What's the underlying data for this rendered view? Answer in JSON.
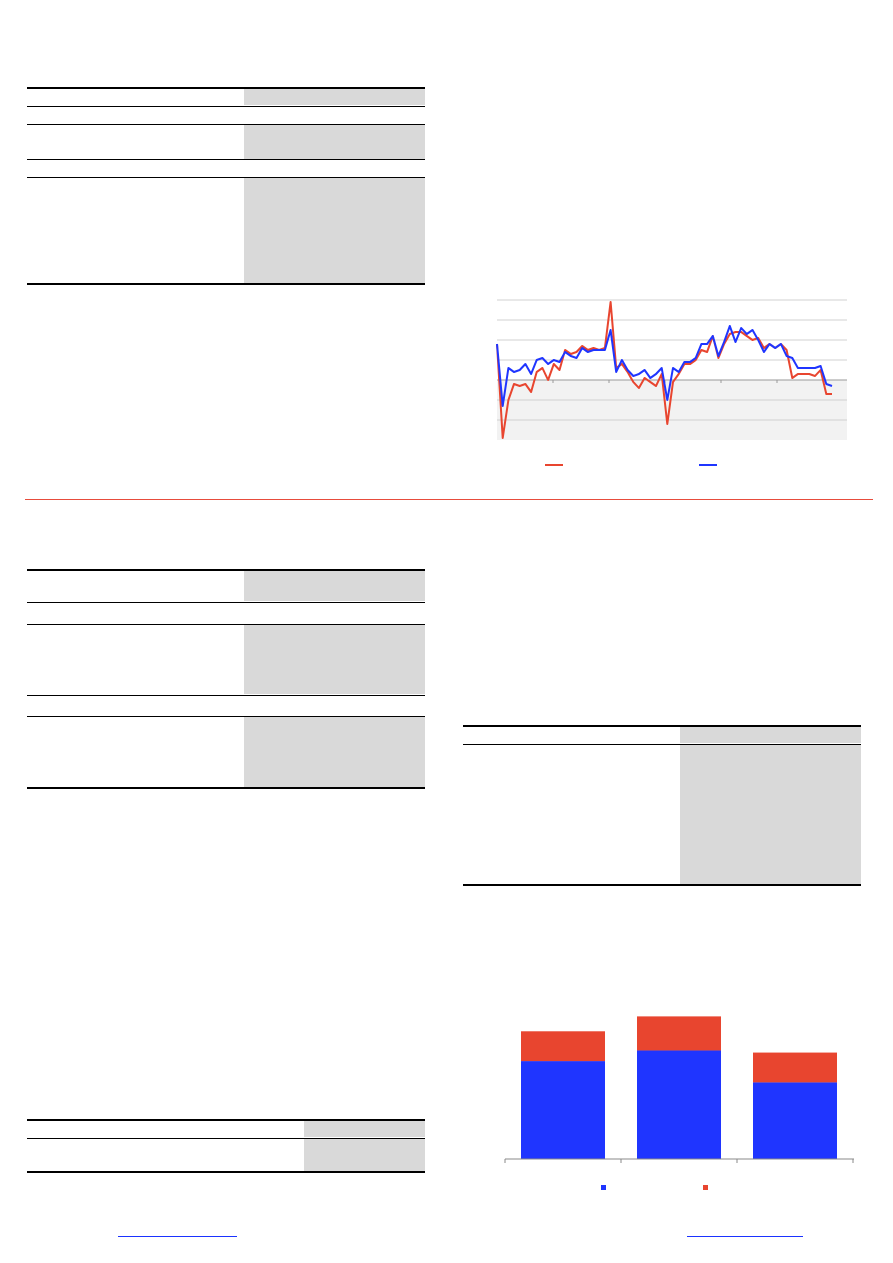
{
  "colors": {
    "series_red": "#e8452f",
    "series_blue": "#1f35ff",
    "divider": "#e74c3c",
    "table_shade": "#d9d9d9",
    "link": "#1a33ff"
  },
  "chart_data": [
    {
      "type": "line",
      "title": "",
      "xlabel": "",
      "ylabel": "",
      "grid": true,
      "legend": "bottom",
      "series": [
        {
          "values": [
            1.8,
            -2.9,
            -1.0,
            -0.2,
            -0.3,
            -0.2,
            -0.6,
            0.4,
            0.6,
            0.0,
            0.8,
            0.5,
            1.5,
            1.3,
            1.4,
            1.7,
            1.5,
            1.6,
            1.5,
            1.6,
            3.9,
            0.6,
            0.8,
            0.4,
            -0.1,
            -0.4,
            0.1,
            -0.1,
            -0.3,
            0.3,
            -2.2,
            -0.1,
            0.3,
            0.8,
            0.8,
            1.0,
            1.5,
            1.4,
            2.2,
            1.1,
            1.8,
            2.3,
            2.4,
            2.4,
            2.2,
            2.0,
            2.1,
            1.6,
            1.8,
            1.6,
            1.8,
            1.5,
            0.1,
            0.3,
            0.3,
            0.3,
            0.2,
            0.5,
            -0.7,
            -0.7
          ]
        },
        {
          "values": [
            1.8,
            -1.3,
            0.6,
            0.4,
            0.5,
            0.8,
            0.3,
            1.0,
            1.1,
            0.8,
            1.0,
            0.9,
            1.4,
            1.2,
            1.1,
            1.6,
            1.4,
            1.5,
            1.5,
            1.5,
            2.5,
            0.4,
            1.0,
            0.5,
            0.2,
            0.3,
            0.5,
            0.1,
            0.3,
            0.6,
            -1.0,
            0.6,
            0.4,
            0.9,
            0.9,
            1.1,
            1.8,
            1.8,
            2.2,
            1.2,
            1.9,
            2.7,
            1.9,
            2.6,
            2.3,
            2.5,
            2.0,
            1.4,
            1.8,
            1.6,
            1.8,
            1.2,
            1.1,
            0.6,
            0.6,
            0.6,
            0.6,
            0.7,
            -0.2,
            -0.3
          ]
        }
      ]
    },
    {
      "type": "bar",
      "title": "",
      "xlabel": "",
      "ylabel": "",
      "legend": "bottom",
      "categories": [
        "",
        "",
        ""
      ],
      "series": [
        {
          "values": [
            46,
            51,
            36
          ]
        },
        {
          "values": [
            14,
            16,
            14
          ]
        }
      ],
      "ylim": [
        0,
        70
      ]
    }
  ]
}
